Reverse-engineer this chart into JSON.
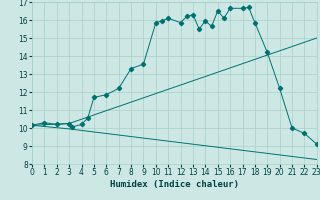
{
  "xlabel": "Humidex (Indice chaleur)",
  "xlim": [
    0,
    23
  ],
  "ylim": [
    8,
    17
  ],
  "yticks": [
    8,
    9,
    10,
    11,
    12,
    13,
    14,
    15,
    16,
    17
  ],
  "xticks": [
    0,
    1,
    2,
    3,
    4,
    5,
    6,
    7,
    8,
    9,
    10,
    11,
    12,
    13,
    14,
    15,
    16,
    17,
    18,
    19,
    20,
    21,
    22,
    23
  ],
  "background_color": "#cde8e4",
  "grid_color": "#a8cfc9",
  "line_color": "#007070",
  "curve1_x": [
    0,
    1,
    2,
    3,
    3.2,
    4,
    4.5,
    5,
    6,
    7,
    8,
    9,
    10,
    10.5,
    11,
    12,
    12.5,
    13,
    13.5,
    14,
    14.5,
    15,
    15.5,
    16,
    17,
    17.5,
    18,
    19,
    20,
    21,
    22,
    23
  ],
  "curve1_y": [
    10.15,
    10.3,
    10.2,
    10.25,
    10.05,
    10.2,
    10.55,
    11.7,
    11.85,
    12.2,
    13.3,
    13.55,
    15.85,
    15.95,
    16.1,
    15.85,
    16.2,
    16.3,
    15.5,
    15.95,
    15.65,
    16.5,
    16.1,
    16.65,
    16.65,
    16.7,
    15.85,
    14.2,
    12.2,
    10.0,
    9.7,
    9.1
  ],
  "curve2_x": [
    0,
    3,
    23
  ],
  "curve2_y": [
    10.15,
    10.25,
    15.0
  ],
  "curve3_x": [
    0,
    3,
    23
  ],
  "curve3_y": [
    10.15,
    9.95,
    8.25
  ]
}
